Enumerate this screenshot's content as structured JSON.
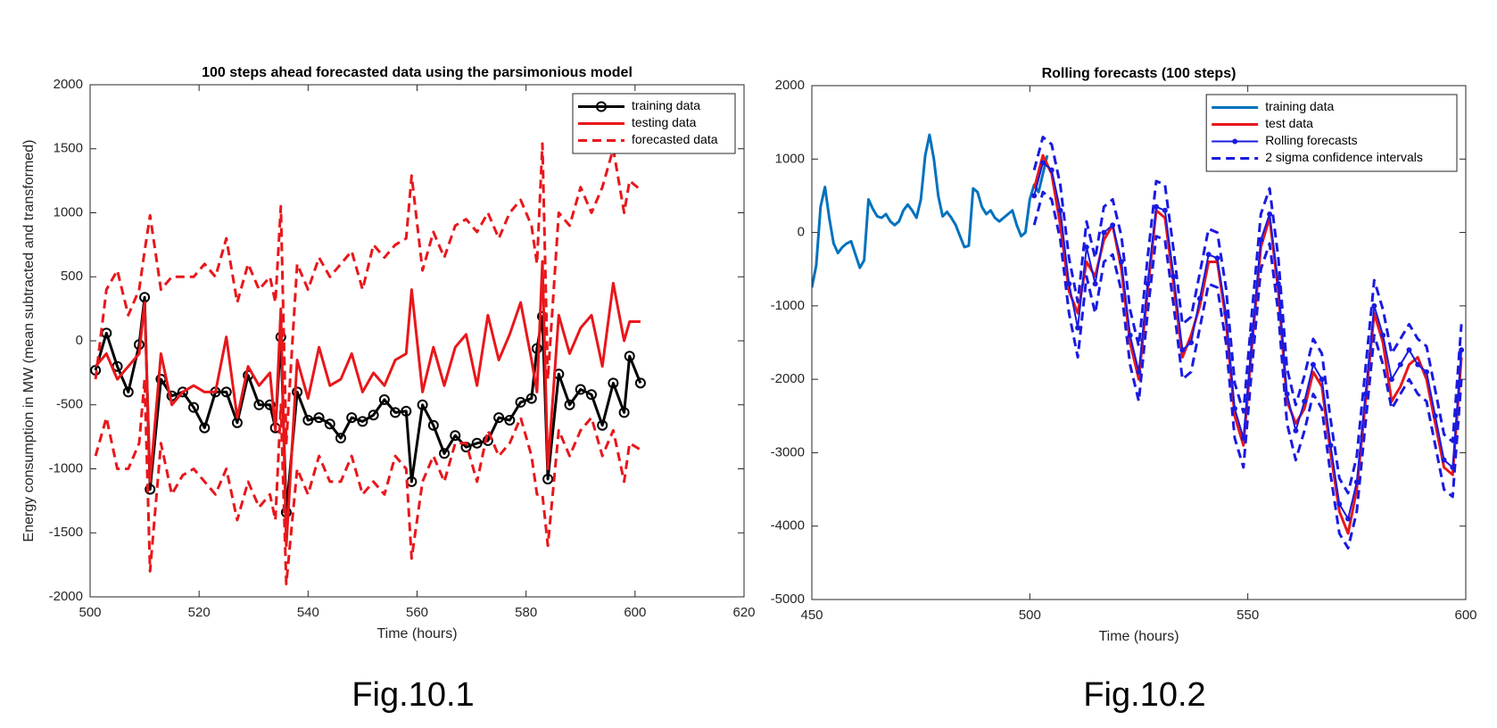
{
  "chart_data": [
    {
      "type": "line",
      "title": "100 steps ahead forecasted data using the parsimonious model",
      "x_label": "Time (hours)",
      "y_label": "Energy consumption in MW (mean subtracted and transformed)",
      "caption": "Fig.10.1",
      "xlim": [
        500,
        620
      ],
      "xticks": [
        500,
        520,
        540,
        560,
        580,
        600,
        620
      ],
      "ylim": [
        -2000,
        2000
      ],
      "yticks": [
        -2000,
        -1500,
        -1000,
        -500,
        0,
        500,
        1000,
        1500,
        2000
      ],
      "legend": "upper right",
      "series": [
        {
          "name": "training data",
          "color": "#000000",
          "marker": "circle",
          "width": 3,
          "x": [
            501,
            503,
            505,
            507,
            509,
            510,
            511,
            513,
            515,
            517,
            519,
            521,
            523,
            525,
            527,
            529,
            531,
            533,
            534,
            535,
            536,
            538,
            540,
            542,
            544,
            546,
            548,
            550,
            552,
            554,
            556,
            558,
            559,
            561,
            563,
            565,
            567,
            569,
            571,
            573,
            575,
            577,
            579,
            581,
            582,
            583,
            584,
            586,
            588,
            590,
            592,
            594,
            596,
            598,
            599,
            601
          ],
          "values": [
            -230,
            60,
            -200,
            -400,
            -30,
            340,
            -1160,
            -300,
            -430,
            -400,
            -520,
            -680,
            -400,
            -400,
            -640,
            -270,
            -500,
            -500,
            -680,
            30,
            -1340,
            -400,
            -620,
            -600,
            -650,
            -760,
            -600,
            -630,
            -580,
            -460,
            -560,
            -550,
            -1100,
            -500,
            -660,
            -880,
            -740,
            -830,
            -800,
            -780,
            -600,
            -620,
            -480,
            -450,
            -60,
            190,
            -1080,
            -260,
            -500,
            -380,
            -420,
            -660,
            -330,
            -560,
            -120,
            -330
          ]
        },
        {
          "name": "testing data",
          "color": "#e8171b",
          "width": 3,
          "x": [
            501,
            503,
            505,
            507,
            509,
            510,
            511,
            513,
            515,
            517,
            519,
            521,
            523,
            525,
            527,
            529,
            531,
            533,
            534,
            535,
            536,
            538,
            540,
            542,
            544,
            546,
            548,
            550,
            552,
            554,
            556,
            558,
            559,
            561,
            563,
            565,
            567,
            569,
            571,
            573,
            575,
            577,
            579,
            581,
            582,
            583,
            584,
            586,
            588,
            590,
            592,
            594,
            596,
            598,
            599,
            601
          ],
          "values": [
            -200,
            -100,
            -300,
            -200,
            -100,
            300,
            -1100,
            -100,
            -500,
            -400,
            -350,
            -400,
            -400,
            30,
            -600,
            -200,
            -350,
            -250,
            -700,
            250,
            -1600,
            -150,
            -450,
            -50,
            -350,
            -300,
            -100,
            -400,
            -250,
            -350,
            -150,
            -100,
            400,
            -400,
            -50,
            -350,
            -50,
            50,
            -350,
            200,
            -150,
            50,
            300,
            -150,
            -400,
            620,
            -1000,
            200,
            -100,
            100,
            200,
            -200,
            450,
            0,
            150,
            150
          ]
        },
        {
          "name": "forecasted data",
          "color": "#e8171b",
          "dash": true,
          "width": 3,
          "x": [
            501,
            503,
            505,
            507,
            509,
            510,
            511,
            513,
            515,
            517,
            519,
            521,
            523,
            525,
            527,
            529,
            531,
            533,
            534,
            535,
            536,
            538,
            540,
            542,
            544,
            546,
            548,
            550,
            552,
            554,
            556,
            558,
            559,
            561,
            563,
            565,
            567,
            569,
            571,
            573,
            575,
            577,
            579,
            581,
            582,
            583,
            584,
            586,
            588,
            590,
            592,
            594,
            596,
            598,
            599,
            601
          ],
          "upper": [
            -300,
            400,
            550,
            200,
            400,
            700,
            980,
            400,
            500,
            500,
            500,
            600,
            500,
            800,
            300,
            600,
            400,
            500,
            300,
            1050,
            -800,
            600,
            400,
            650,
            500,
            600,
            700,
            400,
            750,
            650,
            750,
            800,
            1290,
            550,
            850,
            650,
            900,
            950,
            850,
            1000,
            800,
            1000,
            1100,
            900,
            600,
            1540,
            -300,
            1000,
            900,
            1200,
            1000,
            1200,
            1500,
            1000,
            1250,
            1180
          ],
          "lower": [
            -900,
            -600,
            -1000,
            -1000,
            -800,
            -300,
            -1800,
            -800,
            -1200,
            -1050,
            -1000,
            -1100,
            -1200,
            -1000,
            -1400,
            -1100,
            -1300,
            -1200,
            -1400,
            -500,
            -1900,
            -1000,
            -1200,
            -900,
            -1100,
            -1100,
            -900,
            -1200,
            -1100,
            -1200,
            -900,
            -1000,
            -1700,
            -1100,
            -900,
            -1100,
            -800,
            -800,
            -1100,
            -700,
            -900,
            -800,
            -600,
            -900,
            -1200,
            -1200,
            -1600,
            -700,
            -900,
            -700,
            -600,
            -900,
            -700,
            -1100,
            -800,
            -850
          ]
        }
      ]
    },
    {
      "type": "line",
      "title": "Rolling forecasts (100 steps)",
      "x_label": "Time (hours)",
      "caption": "Fig.10.2",
      "xlim": [
        450,
        600
      ],
      "xticks": [
        450,
        500,
        550,
        600
      ],
      "ylim": [
        -5000,
        2000
      ],
      "yticks": [
        -5000,
        -4000,
        -3000,
        -2000,
        -1000,
        0,
        1000,
        2000
      ],
      "legend": "upper right",
      "series": [
        {
          "name": "training data",
          "color": "#0072bd",
          "width": 3,
          "x": [
            450,
            451,
            452,
            453,
            454,
            455,
            456,
            457,
            458,
            459,
            460,
            461,
            462,
            463,
            464,
            465,
            466,
            467,
            468,
            469,
            470,
            471,
            472,
            473,
            474,
            475,
            476,
            477,
            478,
            479,
            480,
            481,
            482,
            483,
            484,
            485,
            486,
            487,
            488,
            489,
            490,
            491,
            492,
            493,
            494,
            495,
            496,
            497,
            498,
            499,
            500,
            501,
            502,
            503,
            504
          ],
          "values": [
            -750,
            -450,
            350,
            620,
            200,
            -150,
            -280,
            -200,
            -150,
            -120,
            -300,
            -480,
            -380,
            450,
            320,
            220,
            200,
            250,
            150,
            100,
            150,
            300,
            380,
            300,
            200,
            450,
            1050,
            1330,
            1000,
            500,
            220,
            280,
            200,
            100,
            -50,
            -200,
            -180,
            600,
            550,
            350,
            250,
            300,
            200,
            150,
            200,
            250,
            300,
            100,
            -50,
            0,
            450,
            650,
            550,
            800,
            1050
          ]
        },
        {
          "name": "test data",
          "color": "#e8171b",
          "width": 3,
          "x": [
            501,
            503,
            505,
            507,
            509,
            511,
            513,
            515,
            517,
            519,
            521,
            523,
            525,
            527,
            529,
            531,
            533,
            535,
            537,
            539,
            541,
            543,
            545,
            547,
            549,
            551,
            553,
            555,
            557,
            559,
            561,
            563,
            565,
            567,
            569,
            571,
            573,
            575,
            577,
            579,
            581,
            583,
            585,
            587,
            589,
            591,
            593,
            595,
            597,
            599
          ],
          "values": [
            600,
            1050,
            800,
            100,
            -800,
            -1100,
            -400,
            -600,
            -100,
            100,
            -500,
            -1500,
            -2000,
            -800,
            300,
            200,
            -700,
            -1700,
            -1400,
            -1000,
            -400,
            -400,
            -1200,
            -2500,
            -2900,
            -1500,
            -200,
            200,
            -800,
            -2300,
            -2600,
            -2400,
            -1900,
            -2100,
            -3000,
            -3800,
            -4100,
            -3500,
            -2300,
            -1100,
            -1500,
            -2300,
            -2100,
            -1800,
            -1700,
            -2000,
            -2600,
            -3200,
            -3300,
            -1700
          ]
        },
        {
          "name": "Rolling forecasts",
          "color": "#1a1ae0",
          "marker": "dot",
          "width": 2,
          "x": [
            501,
            503,
            505,
            507,
            509,
            511,
            513,
            515,
            517,
            519,
            521,
            523,
            525,
            527,
            529,
            531,
            533,
            535,
            537,
            539,
            541,
            543,
            545,
            547,
            549,
            551,
            553,
            555,
            557,
            559,
            561,
            563,
            565,
            567,
            569,
            571,
            573,
            575,
            577,
            579,
            581,
            583,
            585,
            587,
            589,
            591,
            593,
            595,
            597,
            599
          ],
          "values": [
            500,
            950,
            850,
            300,
            -700,
            -1300,
            -200,
            -700,
            0,
            100,
            -400,
            -1400,
            -1900,
            -700,
            350,
            300,
            -600,
            -1600,
            -1500,
            -900,
            -300,
            -350,
            -1100,
            -2400,
            -2800,
            -1400,
            -100,
            250,
            -700,
            -2200,
            -2700,
            -2300,
            -1800,
            -2000,
            -2900,
            -3700,
            -3900,
            -3400,
            -2200,
            -1000,
            -1400,
            -2000,
            -1800,
            -1600,
            -1800,
            -1900,
            -2500,
            -3100,
            -3200,
            -1600
          ]
        },
        {
          "name": "2 sigma confidence intervals",
          "color": "#1a1ae0",
          "dash": true,
          "width": 3,
          "x": [
            501,
            503,
            505,
            507,
            509,
            511,
            513,
            515,
            517,
            519,
            521,
            523,
            525,
            527,
            529,
            531,
            533,
            535,
            537,
            539,
            541,
            543,
            545,
            547,
            549,
            551,
            553,
            555,
            557,
            559,
            561,
            563,
            565,
            567,
            569,
            571,
            573,
            575,
            577,
            579,
            581,
            583,
            585,
            587,
            589,
            591,
            593,
            595,
            597,
            599
          ],
          "upper": [
            850,
            1300,
            1200,
            650,
            -350,
            -950,
            150,
            -350,
            350,
            450,
            -50,
            -1050,
            -1550,
            -350,
            700,
            650,
            -250,
            -1250,
            -1150,
            -550,
            50,
            0,
            -750,
            -2050,
            -2450,
            -1050,
            250,
            600,
            -350,
            -1850,
            -2350,
            -1950,
            -1450,
            -1650,
            -2550,
            -3350,
            -3550,
            -3050,
            -1850,
            -650,
            -1050,
            -1650,
            -1450,
            -1250,
            -1450,
            -1550,
            -2150,
            -2750,
            -2850,
            -1250
          ],
          "lower": [
            100,
            550,
            450,
            -100,
            -1100,
            -1700,
            -600,
            -1100,
            -400,
            -300,
            -800,
            -1800,
            -2300,
            -1100,
            -50,
            -100,
            -1000,
            -2000,
            -1900,
            -1300,
            -700,
            -750,
            -1500,
            -2800,
            -3200,
            -1800,
            -500,
            -150,
            -1100,
            -2600,
            -3100,
            -2700,
            -2200,
            -2400,
            -3300,
            -4100,
            -4300,
            -3800,
            -2600,
            -1400,
            -1800,
            -2400,
            -2200,
            -2000,
            -2200,
            -2300,
            -2900,
            -3500,
            -3600,
            -2000
          ]
        }
      ]
    }
  ]
}
